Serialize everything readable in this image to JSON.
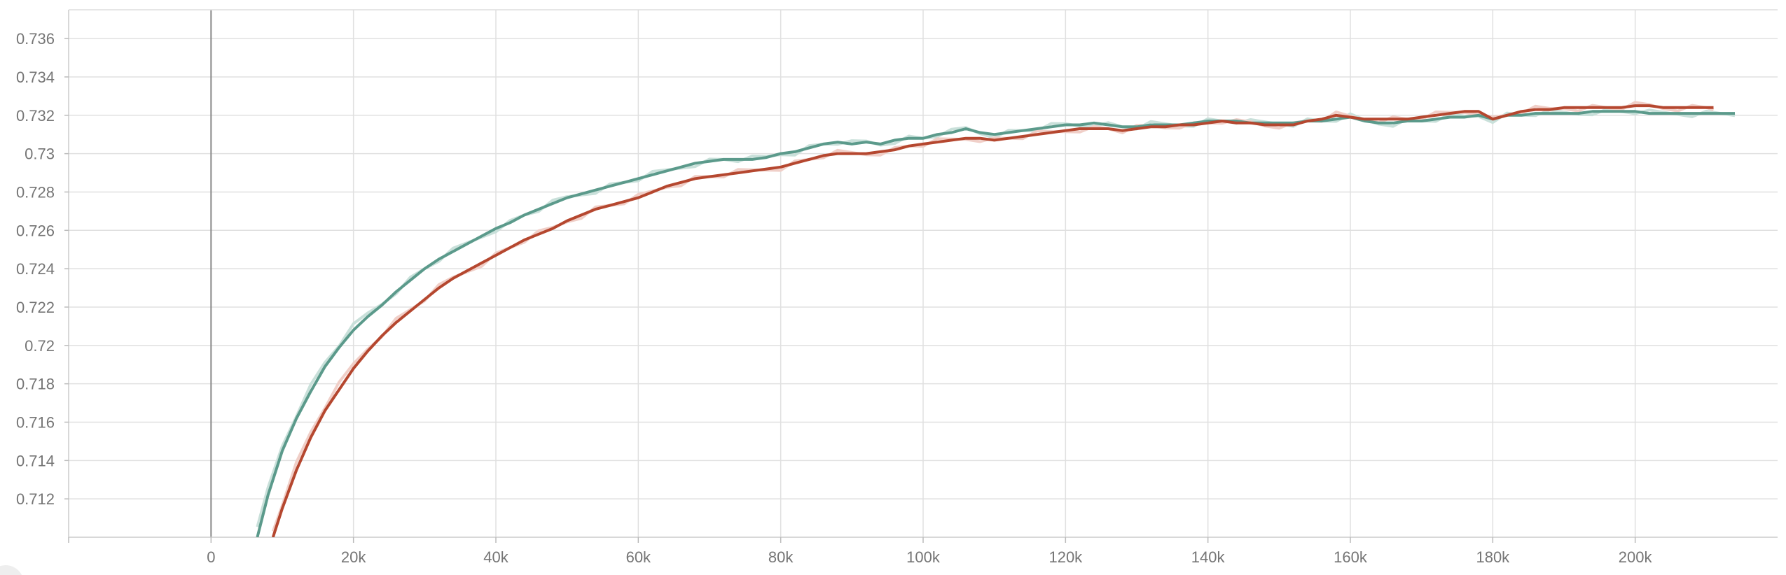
{
  "chart_data": {
    "type": "line",
    "title": "",
    "xlabel": "",
    "ylabel": "",
    "xlim": [
      -20000,
      220000
    ],
    "ylim": [
      0.71,
      0.7375
    ],
    "x_ticks": [
      0,
      20000,
      40000,
      60000,
      80000,
      100000,
      120000,
      140000,
      160000,
      180000,
      200000
    ],
    "x_tick_labels": [
      "0",
      "20k",
      "40k",
      "60k",
      "80k",
      "100k",
      "120k",
      "140k",
      "160k",
      "180k",
      "200k"
    ],
    "y_ticks": [
      0.712,
      0.714,
      0.716,
      0.718,
      0.72,
      0.722,
      0.724,
      0.726,
      0.728,
      0.73,
      0.732,
      0.734,
      0.736
    ],
    "y_tick_labels": [
      "0.712",
      "0.714",
      "0.716",
      "0.718",
      "0.72",
      "0.722",
      "0.724",
      "0.726",
      "0.728",
      "0.73",
      "0.732",
      "0.734",
      "0.736"
    ],
    "grid": true,
    "legend": "none",
    "series": [
      {
        "color": "#5b9a8b",
        "raw_color": "#c9e0da",
        "points": [
          [
            6500,
            0.71
          ],
          [
            8000,
            0.7122
          ],
          [
            10000,
            0.7145
          ],
          [
            12000,
            0.7162
          ],
          [
            14000,
            0.7176
          ],
          [
            16000,
            0.7189
          ],
          [
            18000,
            0.7199
          ],
          [
            20000,
            0.7208
          ],
          [
            22000,
            0.7215
          ],
          [
            24000,
            0.7221
          ],
          [
            26000,
            0.7228
          ],
          [
            28000,
            0.7234
          ],
          [
            30000,
            0.724
          ],
          [
            32000,
            0.7245
          ],
          [
            34000,
            0.7249
          ],
          [
            36000,
            0.7253
          ],
          [
            38000,
            0.7257
          ],
          [
            40000,
            0.7261
          ],
          [
            42000,
            0.7264
          ],
          [
            44000,
            0.7268
          ],
          [
            46000,
            0.7271
          ],
          [
            48000,
            0.7274
          ],
          [
            50000,
            0.7277
          ],
          [
            52000,
            0.7279
          ],
          [
            54000,
            0.7281
          ],
          [
            56000,
            0.7283
          ],
          [
            58000,
            0.7285
          ],
          [
            60000,
            0.7287
          ],
          [
            62000,
            0.7289
          ],
          [
            64000,
            0.7291
          ],
          [
            66000,
            0.7293
          ],
          [
            68000,
            0.7295
          ],
          [
            70000,
            0.7296
          ],
          [
            72000,
            0.7297
          ],
          [
            74000,
            0.7297
          ],
          [
            76000,
            0.7297
          ],
          [
            78000,
            0.7298
          ],
          [
            80000,
            0.73
          ],
          [
            82000,
            0.7301
          ],
          [
            84000,
            0.7303
          ],
          [
            86000,
            0.7305
          ],
          [
            88000,
            0.7306
          ],
          [
            90000,
            0.7305
          ],
          [
            92000,
            0.7306
          ],
          [
            94000,
            0.7305
          ],
          [
            96000,
            0.7307
          ],
          [
            98000,
            0.7308
          ],
          [
            100000,
            0.7308
          ],
          [
            102000,
            0.731
          ],
          [
            104000,
            0.7311
          ],
          [
            106000,
            0.7313
          ],
          [
            108000,
            0.7311
          ],
          [
            110000,
            0.731
          ],
          [
            112000,
            0.7311
          ],
          [
            114000,
            0.7312
          ],
          [
            116000,
            0.7313
          ],
          [
            118000,
            0.7314
          ],
          [
            120000,
            0.7315
          ],
          [
            122000,
            0.7315
          ],
          [
            124000,
            0.7316
          ],
          [
            126000,
            0.7315
          ],
          [
            128000,
            0.7314
          ],
          [
            130000,
            0.7314
          ],
          [
            132000,
            0.7315
          ],
          [
            134000,
            0.7315
          ],
          [
            136000,
            0.7315
          ],
          [
            138000,
            0.7316
          ],
          [
            140000,
            0.7317
          ],
          [
            142000,
            0.7317
          ],
          [
            144000,
            0.7317
          ],
          [
            146000,
            0.7316
          ],
          [
            148000,
            0.7316
          ],
          [
            150000,
            0.7316
          ],
          [
            152000,
            0.7316
          ],
          [
            154000,
            0.7317
          ],
          [
            156000,
            0.7317
          ],
          [
            158000,
            0.7318
          ],
          [
            160000,
            0.7319
          ],
          [
            162000,
            0.7317
          ],
          [
            164000,
            0.7316
          ],
          [
            166000,
            0.7316
          ],
          [
            168000,
            0.7317
          ],
          [
            170000,
            0.7317
          ],
          [
            172000,
            0.7318
          ],
          [
            174000,
            0.7319
          ],
          [
            176000,
            0.7319
          ],
          [
            178000,
            0.732
          ],
          [
            180000,
            0.7318
          ],
          [
            182000,
            0.732
          ],
          [
            184000,
            0.732
          ],
          [
            186000,
            0.7321
          ],
          [
            188000,
            0.7321
          ],
          [
            190000,
            0.7321
          ],
          [
            192000,
            0.7321
          ],
          [
            194000,
            0.7322
          ],
          [
            196000,
            0.7322
          ],
          [
            198000,
            0.7322
          ],
          [
            200000,
            0.7322
          ],
          [
            202000,
            0.7321
          ],
          [
            204000,
            0.7321
          ],
          [
            206000,
            0.7321
          ],
          [
            208000,
            0.7321
          ],
          [
            210000,
            0.7321
          ],
          [
            212000,
            0.7321
          ],
          [
            214000,
            0.7321
          ]
        ]
      },
      {
        "color": "#b5472f",
        "raw_color": "#f0cfc8",
        "points": [
          [
            8700,
            0.71
          ],
          [
            10000,
            0.7115
          ],
          [
            12000,
            0.7135
          ],
          [
            14000,
            0.7152
          ],
          [
            16000,
            0.7166
          ],
          [
            18000,
            0.7177
          ],
          [
            20000,
            0.7188
          ],
          [
            22000,
            0.7197
          ],
          [
            24000,
            0.7205
          ],
          [
            26000,
            0.7212
          ],
          [
            28000,
            0.7218
          ],
          [
            30000,
            0.7224
          ],
          [
            32000,
            0.723
          ],
          [
            34000,
            0.7235
          ],
          [
            36000,
            0.7239
          ],
          [
            38000,
            0.7243
          ],
          [
            40000,
            0.7247
          ],
          [
            42000,
            0.7251
          ],
          [
            44000,
            0.7255
          ],
          [
            46000,
            0.7258
          ],
          [
            48000,
            0.7261
          ],
          [
            50000,
            0.7265
          ],
          [
            52000,
            0.7268
          ],
          [
            54000,
            0.7271
          ],
          [
            56000,
            0.7273
          ],
          [
            58000,
            0.7275
          ],
          [
            60000,
            0.7277
          ],
          [
            62000,
            0.728
          ],
          [
            64000,
            0.7283
          ],
          [
            66000,
            0.7285
          ],
          [
            68000,
            0.7287
          ],
          [
            70000,
            0.7288
          ],
          [
            72000,
            0.7289
          ],
          [
            74000,
            0.729
          ],
          [
            76000,
            0.7291
          ],
          [
            78000,
            0.7292
          ],
          [
            80000,
            0.7293
          ],
          [
            82000,
            0.7295
          ],
          [
            84000,
            0.7297
          ],
          [
            86000,
            0.7299
          ],
          [
            88000,
            0.73
          ],
          [
            90000,
            0.73
          ],
          [
            92000,
            0.73
          ],
          [
            94000,
            0.7301
          ],
          [
            96000,
            0.7302
          ],
          [
            98000,
            0.7304
          ],
          [
            100000,
            0.7305
          ],
          [
            102000,
            0.7306
          ],
          [
            104000,
            0.7307
          ],
          [
            106000,
            0.7308
          ],
          [
            108000,
            0.7308
          ],
          [
            110000,
            0.7307
          ],
          [
            112000,
            0.7308
          ],
          [
            114000,
            0.7309
          ],
          [
            116000,
            0.731
          ],
          [
            118000,
            0.7311
          ],
          [
            120000,
            0.7312
          ],
          [
            122000,
            0.7313
          ],
          [
            124000,
            0.7313
          ],
          [
            126000,
            0.7313
          ],
          [
            128000,
            0.7312
          ],
          [
            130000,
            0.7313
          ],
          [
            132000,
            0.7314
          ],
          [
            134000,
            0.7314
          ],
          [
            136000,
            0.7315
          ],
          [
            138000,
            0.7315
          ],
          [
            140000,
            0.7316
          ],
          [
            142000,
            0.7317
          ],
          [
            144000,
            0.7316
          ],
          [
            146000,
            0.7316
          ],
          [
            148000,
            0.7315
          ],
          [
            150000,
            0.7315
          ],
          [
            152000,
            0.7315
          ],
          [
            154000,
            0.7317
          ],
          [
            156000,
            0.7318
          ],
          [
            158000,
            0.732
          ],
          [
            160000,
            0.7319
          ],
          [
            162000,
            0.7318
          ],
          [
            164000,
            0.7318
          ],
          [
            166000,
            0.7318
          ],
          [
            168000,
            0.7318
          ],
          [
            170000,
            0.7319
          ],
          [
            172000,
            0.732
          ],
          [
            174000,
            0.7321
          ],
          [
            176000,
            0.7322
          ],
          [
            178000,
            0.7322
          ],
          [
            180000,
            0.7318
          ],
          [
            182000,
            0.732
          ],
          [
            184000,
            0.7322
          ],
          [
            186000,
            0.7323
          ],
          [
            188000,
            0.7323
          ],
          [
            190000,
            0.7324
          ],
          [
            192000,
            0.7324
          ],
          [
            194000,
            0.7324
          ],
          [
            196000,
            0.7324
          ],
          [
            198000,
            0.7324
          ],
          [
            200000,
            0.7325
          ],
          [
            202000,
            0.7325
          ],
          [
            204000,
            0.7324
          ],
          [
            206000,
            0.7324
          ],
          [
            208000,
            0.7324
          ],
          [
            210000,
            0.7324
          ],
          [
            211000,
            0.7324
          ]
        ]
      }
    ]
  }
}
